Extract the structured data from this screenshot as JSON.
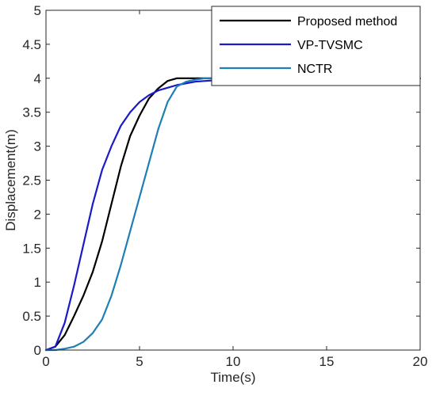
{
  "chart_data": {
    "type": "line",
    "title": "",
    "xlabel": "Time(s)",
    "ylabel": "Displacement(m)",
    "xlim": [
      0,
      20
    ],
    "ylim": [
      0,
      5
    ],
    "xticks": [
      "0",
      "5",
      "10",
      "15",
      "20"
    ],
    "yticks": [
      "0",
      "0.5",
      "1",
      "1.5",
      "2",
      "2.5",
      "3",
      "3.5",
      "4",
      "4.5",
      "5"
    ],
    "grid": false,
    "legend_position": "top-right",
    "series": [
      {
        "name": "Proposed method",
        "color": "#000000",
        "x": [
          0,
          0.5,
          1,
          1.5,
          2,
          2.5,
          3,
          3.5,
          4,
          4.5,
          5,
          5.5,
          6,
          6.5,
          7,
          7.5,
          8,
          9,
          10,
          12,
          15,
          20
        ],
        "y": [
          0,
          0.05,
          0.22,
          0.5,
          0.8,
          1.15,
          1.6,
          2.15,
          2.7,
          3.15,
          3.45,
          3.7,
          3.85,
          3.96,
          4.0,
          4.0,
          4.0,
          4.0,
          4.0,
          4.0,
          4.0,
          4.0
        ]
      },
      {
        "name": "VP-TVSMC",
        "color": "#1a1ac8",
        "x": [
          0,
          0.5,
          1,
          1.5,
          2,
          2.5,
          3,
          3.5,
          4,
          4.5,
          5,
          5.5,
          6,
          6.5,
          7,
          8,
          9,
          10,
          12,
          15,
          20
        ],
        "y": [
          0,
          0.05,
          0.4,
          0.95,
          1.55,
          2.15,
          2.65,
          3.0,
          3.3,
          3.5,
          3.65,
          3.75,
          3.82,
          3.86,
          3.9,
          3.95,
          3.97,
          3.98,
          4.0,
          4.0,
          4.0
        ]
      },
      {
        "name": "NCTR",
        "color": "#1f7fb5",
        "x": [
          0,
          0.5,
          1,
          1.5,
          2,
          2.5,
          3,
          3.5,
          4,
          4.5,
          5,
          5.5,
          6,
          6.5,
          7,
          7.5,
          8,
          8.5,
          9,
          10,
          12,
          15,
          20
        ],
        "y": [
          0,
          0.0,
          0.02,
          0.05,
          0.12,
          0.25,
          0.45,
          0.8,
          1.25,
          1.75,
          2.25,
          2.75,
          3.25,
          3.65,
          3.88,
          3.95,
          3.98,
          4.0,
          4.0,
          4.0,
          4.0,
          4.0,
          4.0
        ]
      }
    ]
  }
}
